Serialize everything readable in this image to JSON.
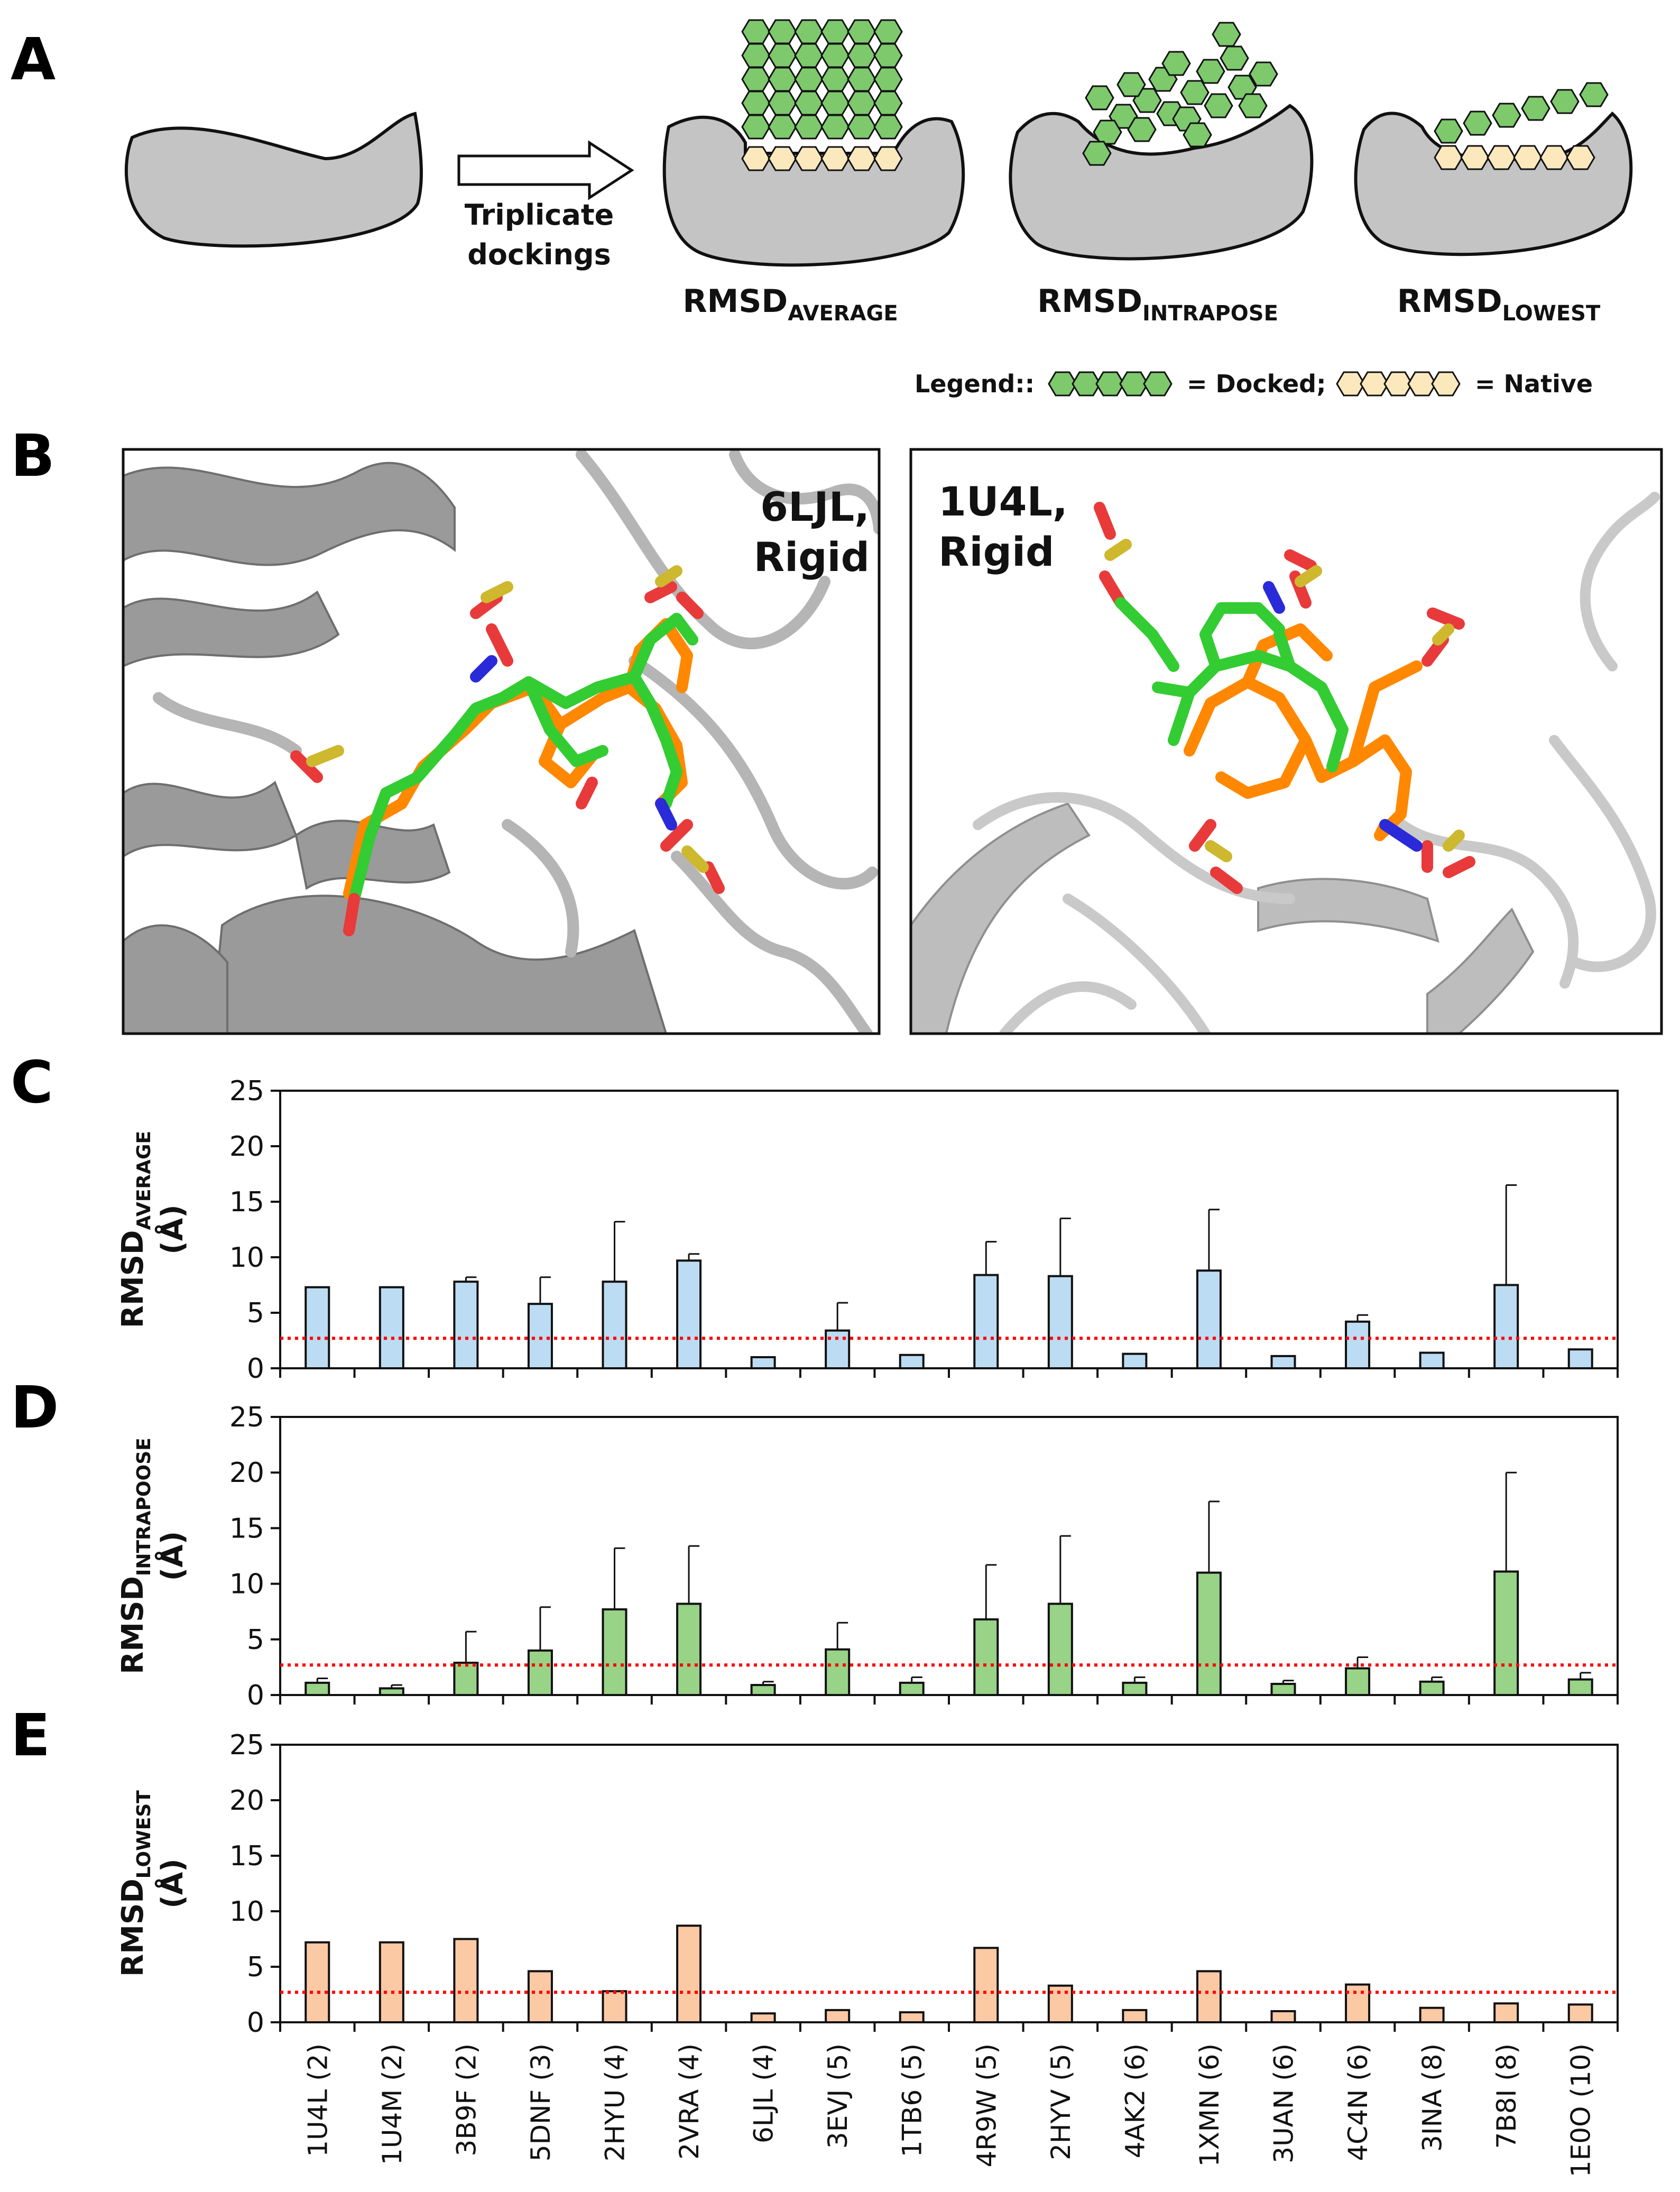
{
  "panels": {
    "A": {
      "letter": "A",
      "arrow_label_line1": "Triplicate",
      "arrow_label_line2": "dockings",
      "metric_prefix": "RMSD",
      "metric_subs": [
        "AVERAGE",
        "INTRAPOSE",
        "LOWEST"
      ],
      "legend_title": "Legend::",
      "legend_docked": "= Docked;",
      "legend_native": "= Native"
    },
    "B": {
      "letter": "B",
      "left_title_line1": "6LJL,",
      "left_title_line2": "Rigid",
      "right_title_line1": "1U4L,",
      "right_title_line2": "Rigid"
    },
    "C": {
      "letter": "C"
    },
    "D": {
      "letter": "D"
    },
    "E": {
      "letter": "E"
    }
  },
  "colors": {
    "docked": "#7dc96c",
    "native": "#fbe8bd",
    "protein": "#c4c4c4",
    "bar_average": "#bcdcf3",
    "bar_intrapose": "#98d387",
    "bar_lowest": "#fcc9a5",
    "threshold": "#ff0000",
    "ligand_green": "#33cc33",
    "ligand_orange": "#ff8800",
    "oxygen": "#e83a3a",
    "sulfur": "#cdb82e",
    "nitrogen": "#2a2ad8"
  },
  "chart_data": [
    {
      "type": "bar",
      "panel": "C",
      "ylabel_main": "RMSD",
      "ylabel_sub": "AVERAGE",
      "ylabel_unit": "(Å)",
      "ylim": [
        0,
        25
      ],
      "yticks": [
        0,
        5,
        10,
        15,
        20,
        25
      ],
      "threshold": 2.7,
      "categories": [
        "1U4L (2)",
        "1U4M (2)",
        "3B9F (2)",
        "5DNF (3)",
        "2HYU (4)",
        "2VRA (4)",
        "6LJL (4)",
        "3EVJ (5)",
        "1TB6 (5)",
        "4R9W (5)",
        "2HYV (5)",
        "4AK2 (6)",
        "1XMN (6)",
        "3UAN (6)",
        "4C4N (6)",
        "3INA (8)",
        "7B8I (8)",
        "1E0O (10)"
      ],
      "values": [
        7.3,
        7.3,
        7.8,
        5.8,
        7.8,
        9.7,
        1.0,
        3.4,
        1.2,
        8.4,
        8.3,
        1.3,
        8.8,
        1.1,
        4.2,
        1.4,
        7.5,
        1.7
      ],
      "errors": [
        0,
        0,
        0.4,
        2.4,
        5.4,
        0.6,
        0,
        2.5,
        0,
        3.0,
        5.2,
        0,
        5.5,
        0,
        0.6,
        0,
        9.0,
        0
      ]
    },
    {
      "type": "bar",
      "panel": "D",
      "ylabel_main": "RMSD",
      "ylabel_sub": "INTRAPOOSE",
      "ylabel_unit": "(Å)",
      "ylim": [
        0,
        25
      ],
      "yticks": [
        0,
        5,
        10,
        15,
        20,
        25
      ],
      "threshold": 2.7,
      "categories": [
        "1U4L (2)",
        "1U4M (2)",
        "3B9F (2)",
        "5DNF (3)",
        "2HYU (4)",
        "2VRA (4)",
        "6LJL (4)",
        "3EVJ (5)",
        "1TB6 (5)",
        "4R9W (5)",
        "2HYV (5)",
        "4AK2 (6)",
        "1XMN (6)",
        "3UAN (6)",
        "4C4N (6)",
        "3INA (8)",
        "7B8I (8)",
        "1E0O (10)"
      ],
      "values": [
        1.1,
        0.6,
        2.9,
        4.0,
        7.7,
        8.2,
        0.9,
        4.1,
        1.1,
        6.8,
        8.2,
        1.1,
        11.0,
        1.0,
        2.4,
        1.2,
        11.1,
        1.4
      ],
      "errors": [
        0.4,
        0.3,
        2.8,
        3.9,
        5.5,
        5.2,
        0.3,
        2.4,
        0.5,
        4.9,
        6.1,
        0.5,
        6.4,
        0.3,
        1.0,
        0.4,
        8.9,
        0.6
      ]
    },
    {
      "type": "bar",
      "panel": "E",
      "ylabel_main": "RMSD",
      "ylabel_sub": "LOWEST",
      "ylabel_unit": "(Å)",
      "ylim": [
        0,
        25
      ],
      "yticks": [
        0,
        5,
        10,
        15,
        20,
        25
      ],
      "threshold": 2.7,
      "categories": [
        "1U4L (2)",
        "1U4M (2)",
        "3B9F (2)",
        "5DNF (3)",
        "2HYU (4)",
        "2VRA (4)",
        "6LJL (4)",
        "3EVJ (5)",
        "1TB6 (5)",
        "4R9W (5)",
        "2HYV (5)",
        "4AK2 (6)",
        "1XMN (6)",
        "3UAN (6)",
        "4C4N (6)",
        "3INA (8)",
        "7B8I (8)",
        "1E0O (10)"
      ],
      "values": [
        7.2,
        7.2,
        7.5,
        4.6,
        2.8,
        8.7,
        0.8,
        1.1,
        0.9,
        6.7,
        3.3,
        1.1,
        4.6,
        1.0,
        3.4,
        1.3,
        1.7,
        1.6
      ],
      "errors": [
        0,
        0,
        0,
        0,
        0,
        0,
        0,
        0,
        0,
        0,
        0,
        0,
        0,
        0,
        0,
        0,
        0,
        0
      ]
    }
  ]
}
